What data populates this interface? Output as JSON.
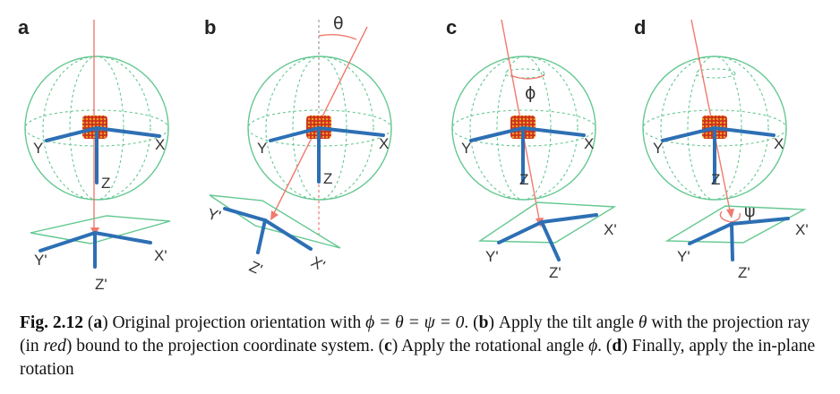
{
  "panels": [
    {
      "letter": "a",
      "labels": {
        "x": "X",
        "y": "Y",
        "z": "Z",
        "xp": "X'",
        "yp": "Y'",
        "zp": "Z'"
      }
    },
    {
      "letter": "b",
      "labels": {
        "x": "X",
        "y": "Y",
        "z": "Z",
        "xp": "X'",
        "yp": "Y'",
        "zp": "Z'"
      },
      "angle": "θ"
    },
    {
      "letter": "c",
      "labels": {
        "x": "X",
        "y": "Y",
        "z": "Z",
        "xp": "X'",
        "yp": "Y'",
        "zp": "Z'"
      },
      "angle": "ϕ"
    },
    {
      "letter": "d",
      "labels": {
        "x": "X",
        "y": "Y",
        "z": "Z",
        "xp": "X'",
        "yp": "Y'",
        "zp": "Z'"
      },
      "angle": "ψ"
    }
  ],
  "caption": {
    "fig_label": "Fig. 2.12",
    "p1": " (",
    "a": "a",
    "p2": ") Original projection orientation with ",
    "eq": "ϕ = θ = ψ = 0",
    "p3": ". (",
    "b": "b",
    "p4": ") Apply the tilt angle ",
    "theta": "θ",
    "p5": " with the projection ray (in ",
    "red": "red",
    "p6": ") bound to the projection coordinate system. (",
    "c": "c",
    "p7": ") Apply the rotational angle ",
    "phi": "ϕ",
    "p8": ". (",
    "d": "d",
    "p9": ") Finally, apply the in-plane rotation"
  }
}
